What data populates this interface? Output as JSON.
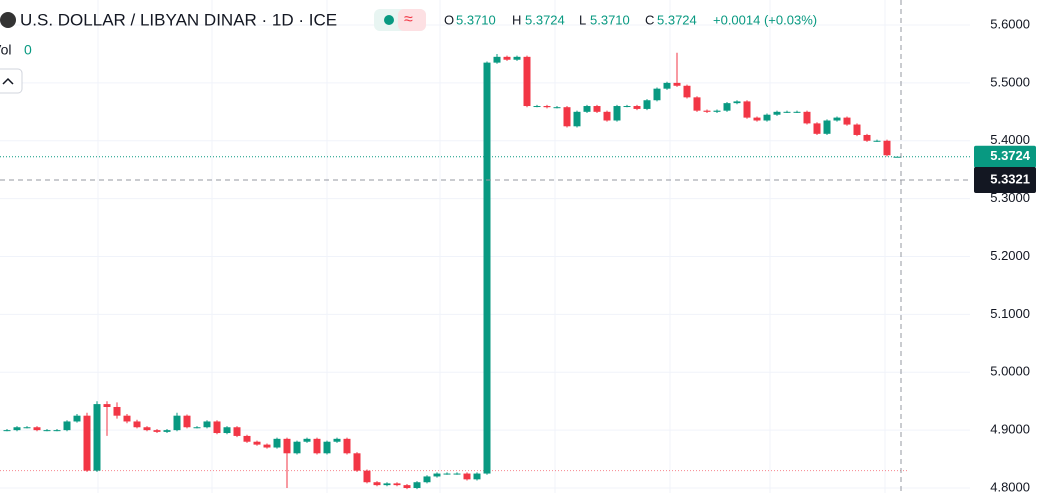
{
  "header": {
    "symbol": "U.S. DOLLAR / LIBYAN DINAR · 1D · ICE",
    "open_label": "O",
    "open": "5.3710",
    "high_label": "H",
    "high": "5.3724",
    "low_label": "L",
    "low": "5.3710",
    "close_label": "C",
    "close": "5.3724",
    "change": "+0.0014 (+0.03%)",
    "volume_label": "Vol",
    "volume": "0"
  },
  "chart_data": {
    "type": "candlestick",
    "up_color": "#089981",
    "down_color": "#f23645",
    "ylim": [
      4.7914,
      5.6432
    ],
    "yticks": [
      {
        "value": 5.6,
        "label": "5.6000"
      },
      {
        "value": 5.5,
        "label": "5.5000"
      },
      {
        "value": 5.4,
        "label": "5.4000"
      },
      {
        "value": 5.3,
        "label": "5.3000"
      },
      {
        "value": 5.2,
        "label": "5.2000"
      },
      {
        "value": 5.1,
        "label": "5.1000"
      },
      {
        "value": 5.0,
        "label": "5.0000"
      },
      {
        "value": 4.9,
        "label": "4.9000"
      },
      {
        "value": 4.8,
        "label": "4.8000"
      }
    ],
    "last_price": {
      "value": 5.3724,
      "label": "5.3724"
    },
    "crosshair_price": {
      "value": 5.3321,
      "label": "5.3321"
    },
    "reference_line": 4.83,
    "candles": [
      [
        4.9,
        4.902,
        4.898,
        4.9
      ],
      [
        4.9,
        4.907,
        4.898,
        4.905
      ],
      [
        4.905,
        4.907,
        4.903,
        4.905
      ],
      [
        4.905,
        4.907,
        4.898,
        4.9
      ],
      [
        4.9,
        4.902,
        4.898,
        4.9
      ],
      [
        4.9,
        4.902,
        4.898,
        4.9
      ],
      [
        4.9,
        4.917,
        4.898,
        4.915
      ],
      [
        4.915,
        4.928,
        4.913,
        4.925
      ],
      [
        4.925,
        4.93,
        4.828,
        4.83
      ],
      [
        4.83,
        4.95,
        4.828,
        4.945
      ],
      [
        4.945,
        4.95,
        4.89,
        4.94
      ],
      [
        4.94,
        4.948,
        4.92,
        4.925
      ],
      [
        4.925,
        4.928,
        4.912,
        4.915
      ],
      [
        4.915,
        4.918,
        4.903,
        4.905
      ],
      [
        4.905,
        4.907,
        4.898,
        4.9
      ],
      [
        4.9,
        4.902,
        4.895,
        4.897
      ],
      [
        4.897,
        4.902,
        4.895,
        4.9
      ],
      [
        4.9,
        4.93,
        4.898,
        4.925
      ],
      [
        4.925,
        4.927,
        4.903,
        4.905
      ],
      [
        4.905,
        4.907,
        4.903,
        4.905
      ],
      [
        4.905,
        4.917,
        4.903,
        4.915
      ],
      [
        4.915,
        4.917,
        4.893,
        4.895
      ],
      [
        4.895,
        4.907,
        4.893,
        4.905
      ],
      [
        4.905,
        4.907,
        4.888,
        4.89
      ],
      [
        4.89,
        4.892,
        4.878,
        4.88
      ],
      [
        4.88,
        4.882,
        4.873,
        4.875
      ],
      [
        4.875,
        4.877,
        4.868,
        4.87
      ],
      [
        4.87,
        4.887,
        4.868,
        4.885
      ],
      [
        4.885,
        4.887,
        4.8,
        4.86
      ],
      [
        4.86,
        4.882,
        4.858,
        4.88
      ],
      [
        4.88,
        4.887,
        4.878,
        4.885
      ],
      [
        4.885,
        4.887,
        4.858,
        4.86
      ],
      [
        4.86,
        4.882,
        4.858,
        4.88
      ],
      [
        4.88,
        4.887,
        4.878,
        4.885
      ],
      [
        4.885,
        4.887,
        4.858,
        4.86
      ],
      [
        4.86,
        4.862,
        4.828,
        4.83
      ],
      [
        4.83,
        4.832,
        4.808,
        4.81
      ],
      [
        4.81,
        4.812,
        4.803,
        4.805
      ],
      [
        4.805,
        4.81,
        4.803,
        4.808
      ],
      [
        4.808,
        4.81,
        4.803,
        4.805
      ],
      [
        4.805,
        4.807,
        4.798,
        4.8
      ],
      [
        4.8,
        4.812,
        4.798,
        4.81
      ],
      [
        4.81,
        4.822,
        4.808,
        4.82
      ],
      [
        4.82,
        4.827,
        4.818,
        4.825
      ],
      [
        4.825,
        4.827,
        4.823,
        4.825
      ],
      [
        4.825,
        4.827,
        4.823,
        4.825
      ],
      [
        4.825,
        4.827,
        4.813,
        4.815
      ],
      [
        4.815,
        4.827,
        4.813,
        4.825
      ],
      [
        4.825,
        5.537,
        4.823,
        5.535
      ],
      [
        5.535,
        5.55,
        5.533,
        5.545
      ],
      [
        5.545,
        5.547,
        5.538,
        5.54
      ],
      [
        5.54,
        5.547,
        5.538,
        5.545
      ],
      [
        5.545,
        5.547,
        5.458,
        5.46
      ],
      [
        5.46,
        5.462,
        5.458,
        5.46
      ],
      [
        5.46,
        5.462,
        5.456,
        5.458
      ],
      [
        5.458,
        5.46,
        5.456,
        5.458
      ],
      [
        5.458,
        5.46,
        5.423,
        5.425
      ],
      [
        5.425,
        5.452,
        5.423,
        5.45
      ],
      [
        5.45,
        5.462,
        5.448,
        5.46
      ],
      [
        5.46,
        5.462,
        5.448,
        5.45
      ],
      [
        5.45,
        5.452,
        5.433,
        5.435
      ],
      [
        5.435,
        5.462,
        5.433,
        5.46
      ],
      [
        5.46,
        5.462,
        5.458,
        5.46
      ],
      [
        5.46,
        5.462,
        5.453,
        5.455
      ],
      [
        5.455,
        5.472,
        5.453,
        5.47
      ],
      [
        5.47,
        5.492,
        5.468,
        5.49
      ],
      [
        5.49,
        5.502,
        5.488,
        5.5
      ],
      [
        5.5,
        5.552,
        5.493,
        5.495
      ],
      [
        5.495,
        5.497,
        5.473,
        5.475
      ],
      [
        5.475,
        5.477,
        5.45,
        5.452
      ],
      [
        5.452,
        5.454,
        5.448,
        5.45
      ],
      [
        5.45,
        5.454,
        5.448,
        5.452
      ],
      [
        5.452,
        5.467,
        5.45,
        5.465
      ],
      [
        5.465,
        5.47,
        5.463,
        5.468
      ],
      [
        5.468,
        5.47,
        5.438,
        5.44
      ],
      [
        5.44,
        5.442,
        5.433,
        5.435
      ],
      [
        5.435,
        5.447,
        5.433,
        5.445
      ],
      [
        5.445,
        5.452,
        5.443,
        5.45
      ],
      [
        5.45,
        5.452,
        5.448,
        5.45
      ],
      [
        5.45,
        5.452,
        5.448,
        5.45
      ],
      [
        5.45,
        5.452,
        5.428,
        5.43
      ],
      [
        5.43,
        5.432,
        5.41,
        5.412
      ],
      [
        5.412,
        5.437,
        5.41,
        5.435
      ],
      [
        5.435,
        5.442,
        5.433,
        5.44
      ],
      [
        5.44,
        5.442,
        5.426,
        5.428
      ],
      [
        5.428,
        5.43,
        5.408,
        5.41
      ],
      [
        5.41,
        5.412,
        5.398,
        5.4
      ],
      [
        5.4,
        5.402,
        5.398,
        5.4
      ],
      [
        5.4,
        5.402,
        5.373,
        5.375
      ],
      [
        5.371,
        5.3724,
        5.371,
        5.3724
      ]
    ]
  }
}
